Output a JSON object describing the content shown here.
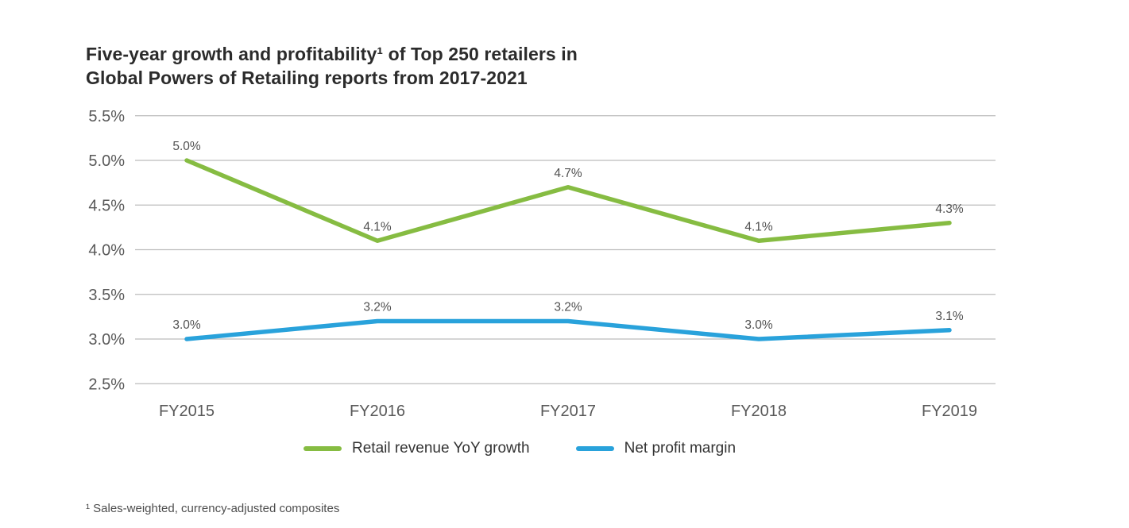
{
  "page": {
    "title_line1": "Five-year growth and profitability¹ of Top 250 retailers in",
    "title_line2": "Global Powers of Retailing reports from 2017-2021",
    "footnote": "¹ Sales-weighted, currency-adjusted composites"
  },
  "colors": {
    "green": "#86BC42",
    "blue": "#29A2DB",
    "grid": "#BCBCBC",
    "axis_text": "#595959",
    "data_label": "#505050",
    "title_text": "#2B2B2B"
  },
  "legend": {
    "items": [
      {
        "label": "Retail revenue YoY growth",
        "color_key": "green"
      },
      {
        "label": "Net profit margin",
        "color_key": "blue"
      }
    ]
  },
  "chart_data": {
    "type": "line",
    "title": "Five-year growth and profitability¹ of Top 250 retailers in Global Powers of Retailing reports from 2017-2021",
    "categories": [
      "FY2015",
      "FY2016",
      "FY2017",
      "FY2018",
      "FY2019"
    ],
    "series": [
      {
        "name": "Retail revenue YoY growth",
        "color_key": "green",
        "values": [
          5.0,
          4.1,
          4.7,
          4.1,
          4.3
        ],
        "labels": [
          "5.0%",
          "4.1%",
          "4.7%",
          "4.1%",
          "4.3%"
        ]
      },
      {
        "name": "Net profit margin",
        "color_key": "blue",
        "values": [
          3.0,
          3.2,
          3.2,
          3.0,
          3.1
        ],
        "labels": [
          "3.0%",
          "3.2%",
          "3.2%",
          "3.0%",
          "3.1%"
        ]
      }
    ],
    "xlabel": "",
    "ylabel": "",
    "ylim": [
      2.5,
      5.5
    ],
    "y_ticks": [
      5.5,
      5.0,
      4.5,
      4.0,
      3.5,
      3.0,
      2.5
    ],
    "y_tick_labels": [
      "5.5%",
      "5.0%",
      "4.5%",
      "4.0%",
      "3.5%",
      "3.0%",
      "2.5%"
    ],
    "grid": true,
    "legend_position": "bottom"
  }
}
